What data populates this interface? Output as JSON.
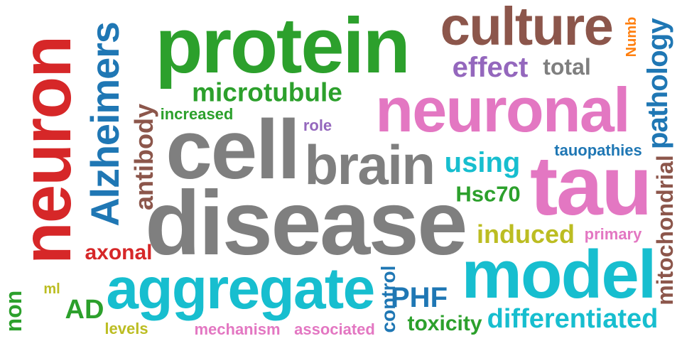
{
  "words": [
    {
      "text": "neuron",
      "color": "#d62728"
    },
    {
      "text": "Alzheimers",
      "color": "#1f77b4"
    },
    {
      "text": "protein",
      "color": "#2ca02c"
    },
    {
      "text": "culture",
      "color": "#8c564b"
    },
    {
      "text": "Numb",
      "color": "#ff7f0e"
    },
    {
      "text": "pathology",
      "color": "#1f77b4"
    },
    {
      "text": "effect",
      "color": "#9467bd"
    },
    {
      "text": "total",
      "color": "#7f7f7f"
    },
    {
      "text": "microtubule",
      "color": "#2ca02c"
    },
    {
      "text": "neuronal",
      "color": "#e377c2"
    },
    {
      "text": "antibody",
      "color": "#8c564b"
    },
    {
      "text": "increased",
      "color": "#2ca02c"
    },
    {
      "text": "cell",
      "color": "#7f7f7f"
    },
    {
      "text": "role",
      "color": "#9467bd"
    },
    {
      "text": "brain",
      "color": "#7f7f7f"
    },
    {
      "text": "using",
      "color": "#17becf"
    },
    {
      "text": "tauopathies",
      "color": "#1f77b4"
    },
    {
      "text": "tau",
      "color": "#e377c2"
    },
    {
      "text": "mitochondrial",
      "color": "#8c564b"
    },
    {
      "text": "Hsc70",
      "color": "#2ca02c"
    },
    {
      "text": "disease",
      "color": "#7f7f7f"
    },
    {
      "text": "induced",
      "color": "#bcbd22"
    },
    {
      "text": "primary",
      "color": "#e377c2"
    },
    {
      "text": "axonal",
      "color": "#d62728"
    },
    {
      "text": "model",
      "color": "#17becf"
    },
    {
      "text": "aggregate",
      "color": "#17becf"
    },
    {
      "text": "non",
      "color": "#2ca02c"
    },
    {
      "text": "ml",
      "color": "#bcbd22"
    },
    {
      "text": "AD",
      "color": "#2ca02c"
    },
    {
      "text": "control",
      "color": "#1f77b4"
    },
    {
      "text": "PHF",
      "color": "#1f77b4"
    },
    {
      "text": "levels",
      "color": "#bcbd22"
    },
    {
      "text": "mechanism",
      "color": "#e377c2"
    },
    {
      "text": "associated",
      "color": "#e377c2"
    },
    {
      "text": "toxicity",
      "color": "#2ca02c"
    },
    {
      "text": "differentiated",
      "color": "#17becf"
    }
  ]
}
